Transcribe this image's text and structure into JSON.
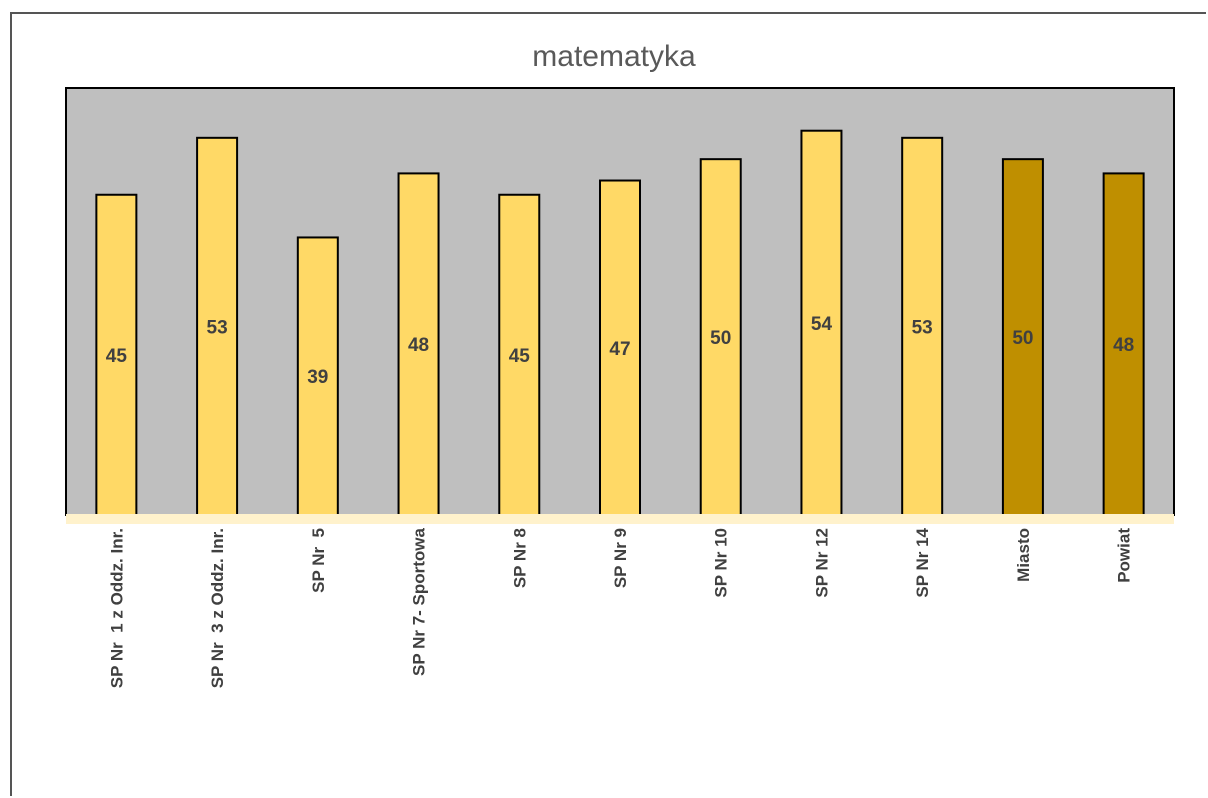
{
  "chart_data": {
    "type": "bar",
    "title": "matematyka",
    "categories": [
      "SP Nr  1 z Oddz. Inr.",
      "SP Nr  3 z Oddz. Inr.",
      "SP Nr  5",
      "SP Nr 7- Sportowa",
      "SP Nr 8",
      "SP Nr 9",
      "SP Nr 10",
      "SP Nr 12",
      "SP Nr 14",
      "Miasto",
      "Powiat"
    ],
    "values": [
      45,
      53,
      39,
      48,
      45,
      47,
      50,
      54,
      53,
      50,
      48
    ],
    "highlighted": [
      false,
      false,
      false,
      false,
      false,
      false,
      false,
      false,
      false,
      true,
      true
    ],
    "ylim": [
      0,
      60
    ],
    "grid": false,
    "legend": "none",
    "colors": {
      "bar": "#FFD966",
      "bar_highlight": "#BF8F00",
      "plot_background": "#BFBFBF",
      "baseline": "#FFF2CC",
      "bar_border": "#000000"
    }
  }
}
